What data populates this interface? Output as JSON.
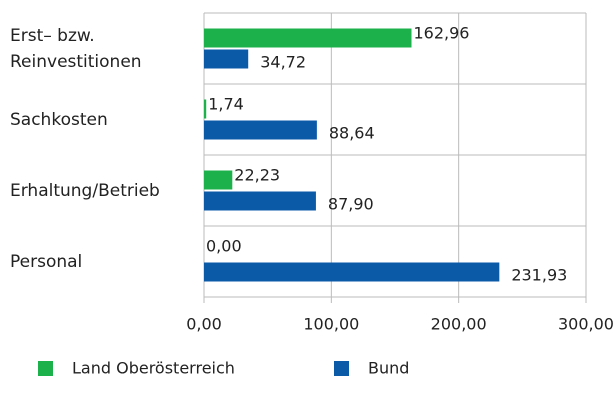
{
  "chart_data": {
    "type": "barh",
    "categories": [
      "Erst– bzw. Reinvestitionen",
      "Sachkosten",
      "Erhaltung/Betrieb",
      "Personal"
    ],
    "series": [
      {
        "name": "Land Oberösterreich",
        "color": "#1db14b",
        "values": [
          162.96,
          1.74,
          22.23,
          0.0
        ],
        "value_labels": [
          "162,96",
          "1,74",
          "22,23",
          "0,00"
        ]
      },
      {
        "name": "Bund",
        "color": "#0a5aa8",
        "values": [
          34.72,
          88.64,
          87.9,
          231.93
        ],
        "value_labels": [
          "34,72",
          "88,64",
          "87,90",
          "231,93"
        ]
      }
    ],
    "xlim": [
      0,
      300
    ],
    "xticks": [
      {
        "value": 0,
        "label": "0,00"
      },
      {
        "value": 100,
        "label": "100,00"
      },
      {
        "value": 200,
        "label": "200,00"
      },
      {
        "value": 300,
        "label": "300,00"
      }
    ],
    "grid": true,
    "legend": "bottom"
  }
}
